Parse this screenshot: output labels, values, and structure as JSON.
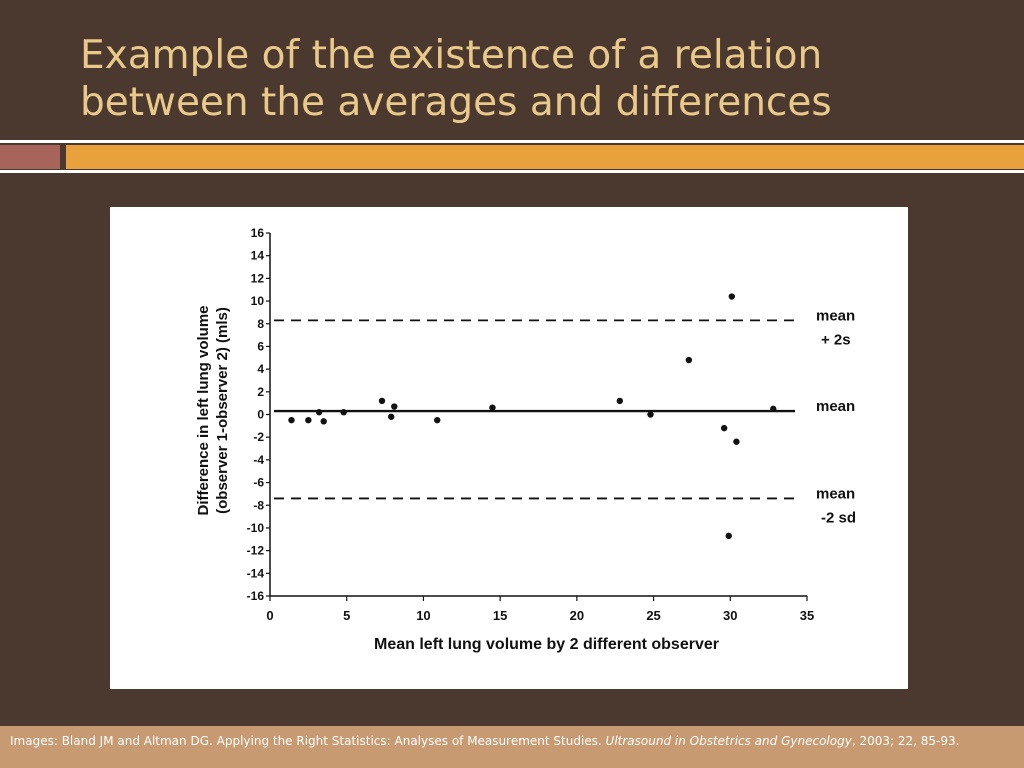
{
  "slide": {
    "title_line1": "Example of the existence of a relation",
    "title_line2": "between the averages and differences",
    "colors": {
      "background": "#4b382e",
      "title": "#e9c98a",
      "accent_left": "#a6645a",
      "accent_right": "#e9a23b",
      "footer": "#c89a72"
    }
  },
  "footer": {
    "text_plain": "Images: Bland JM and Altman DG. Applying the Right Statistics: Analyses of Measurement Studies. ",
    "text_italic": "Ultrasound in Obstetrics and Gynecology",
    "text_tail": ", 2003; 22, 85-93."
  },
  "chart_data": {
    "type": "scatter",
    "title": "",
    "xlabel": "Mean left lung volume by 2 different observer",
    "ylabel_line1": "Difference in left lung volume",
    "ylabel_line2": "(observer 1-observer 2) (mls)",
    "xlim": [
      0,
      35
    ],
    "ylim": [
      -16,
      16
    ],
    "x_ticks": [
      0,
      5,
      10,
      15,
      20,
      25,
      30,
      35
    ],
    "y_ticks": [
      16,
      14,
      12,
      10,
      8,
      6,
      4,
      2,
      0,
      -2,
      -4,
      -6,
      -8,
      -10,
      -12,
      -14,
      -16
    ],
    "grid": false,
    "points": [
      {
        "x": 1.4,
        "y": -0.5
      },
      {
        "x": 2.5,
        "y": -0.5
      },
      {
        "x": 3.2,
        "y": 0.2
      },
      {
        "x": 3.5,
        "y": -0.6
      },
      {
        "x": 4.8,
        "y": 0.2
      },
      {
        "x": 7.3,
        "y": 1.2
      },
      {
        "x": 7.9,
        "y": -0.2
      },
      {
        "x": 8.1,
        "y": 0.7
      },
      {
        "x": 10.9,
        "y": -0.5
      },
      {
        "x": 14.5,
        "y": 0.6
      },
      {
        "x": 22.8,
        "y": 1.2
      },
      {
        "x": 24.8,
        "y": 0.0
      },
      {
        "x": 27.3,
        "y": 4.8
      },
      {
        "x": 29.6,
        "y": -1.2
      },
      {
        "x": 29.9,
        "y": -10.7
      },
      {
        "x": 30.1,
        "y": 10.4
      },
      {
        "x": 30.4,
        "y": -2.4
      },
      {
        "x": 32.8,
        "y": 0.5
      }
    ],
    "reference_lines": [
      {
        "y": 8.3,
        "style": "dashed",
        "label_line1": "mean",
        "label_line2": "+ 2s"
      },
      {
        "y": 0.3,
        "style": "solid",
        "label_line1": "mean",
        "label_line2": ""
      },
      {
        "y": -7.4,
        "style": "dashed",
        "label_line1": "mean",
        "label_line2": "-2 sd"
      }
    ]
  }
}
